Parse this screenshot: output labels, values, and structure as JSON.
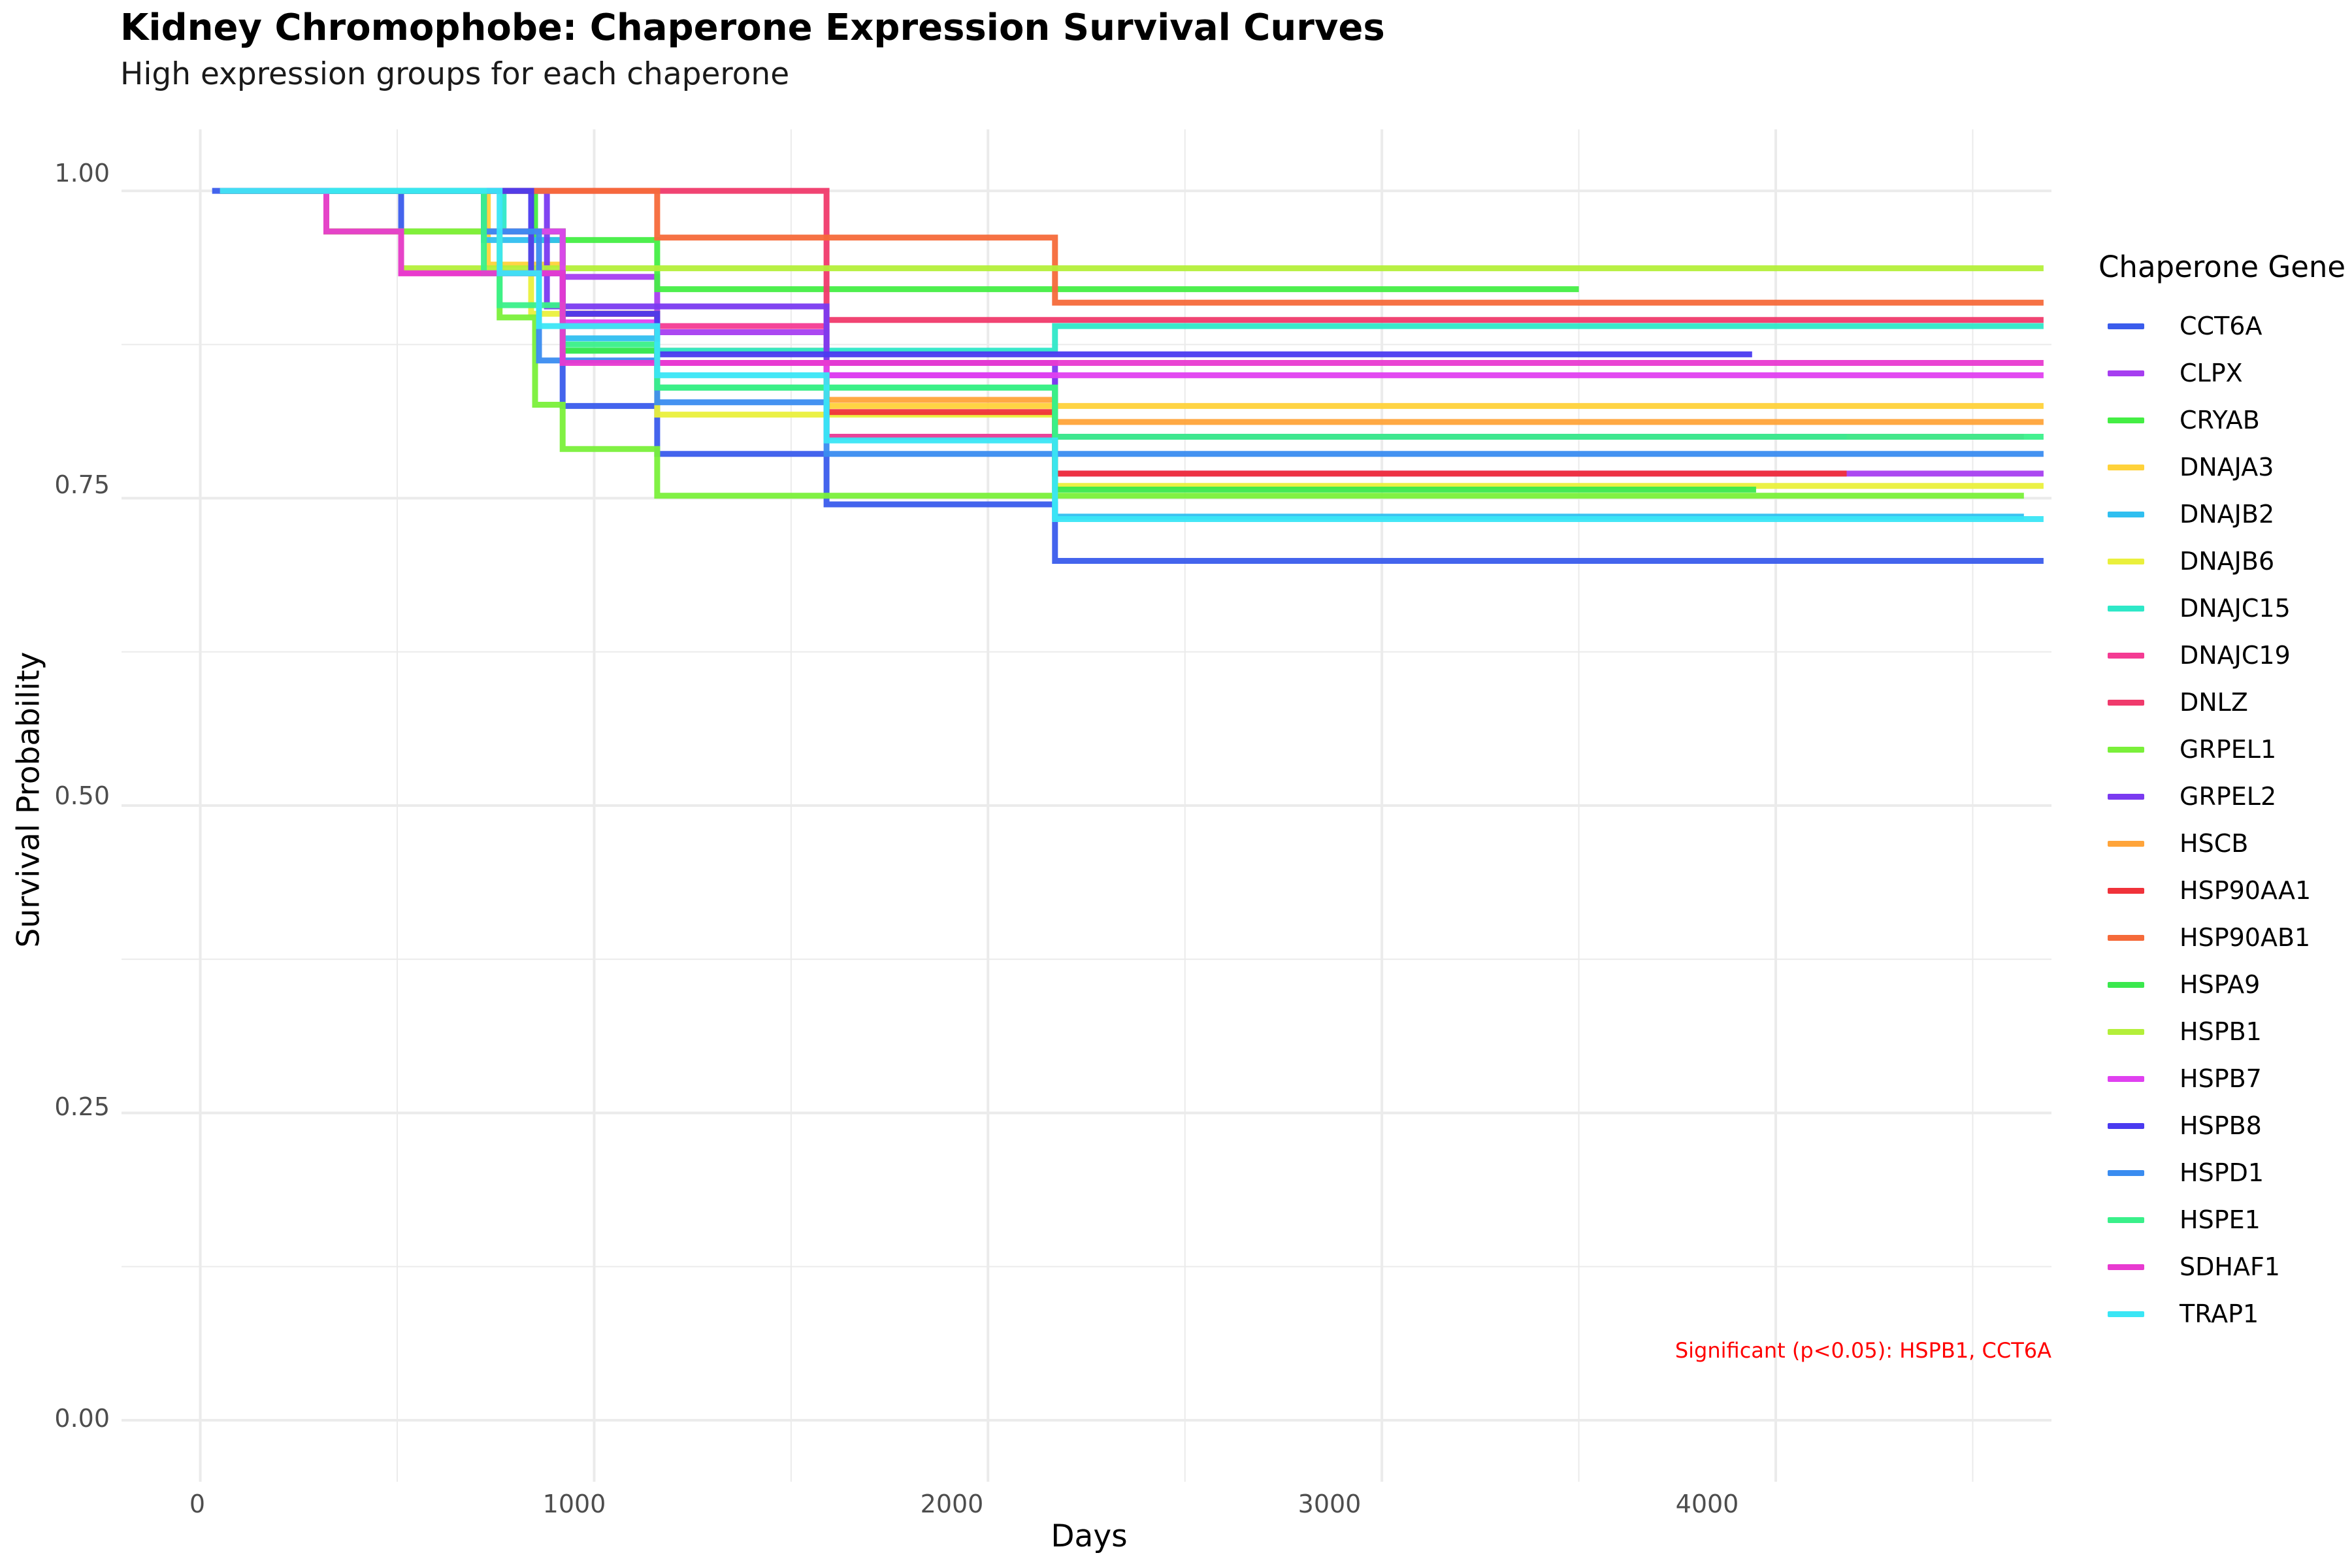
{
  "title": "Kidney Chromophobe: Chaperone Expression Survival Curves",
  "subtitle": "High expression groups for each chaperone",
  "annotation": "Significant (p<0.05): HSPB1, CCT6A",
  "legend_title": "Chaperone Gene",
  "chart_data": {
    "type": "line",
    "subtype": "kaplan-meier step curves",
    "title": "Kidney Chromophobe: Chaperone Expression Survival Curves",
    "subtitle": "High expression groups for each chaperone",
    "xlabel": "Days",
    "ylabel": "Survival Probability",
    "xlim": [
      -200,
      4700
    ],
    "ylim": [
      -0.05,
      1.05
    ],
    "xticks": [
      "0",
      "1000",
      "2000",
      "3000",
      "4000"
    ],
    "yticks": [
      "0.00",
      "0.25",
      "0.50",
      "0.75",
      "1.00"
    ],
    "grid": true,
    "legend_position": "right",
    "series": [
      {
        "name": "CCT6A",
        "color": "#3a5cec",
        "x": [
          30,
          510,
          920,
          1160,
          1590,
          2170,
          4680
        ],
        "y": [
          1.0,
          0.967,
          0.825,
          0.786,
          0.745,
          0.699,
          0.699
        ]
      },
      {
        "name": "CLPX",
        "color": "#a63ef0",
        "x": [
          50,
          720,
          920,
          1160,
          1590,
          2170,
          4680
        ],
        "y": [
          1.0,
          0.967,
          0.93,
          0.885,
          0.85,
          0.77,
          0.77
        ]
      },
      {
        "name": "CRYAB",
        "color": "#44ee44",
        "x": [
          50,
          850,
          1160,
          2170,
          3500
        ],
        "y": [
          1.0,
          0.96,
          0.92,
          0.92,
          0.92
        ]
      },
      {
        "name": "DNAJA3",
        "color": "#ffd23a",
        "x": [
          50,
          730,
          920,
          1160,
          1590,
          4680
        ],
        "y": [
          1.0,
          0.94,
          0.9,
          0.87,
          0.825,
          0.825
        ]
      },
      {
        "name": "DNAJB2",
        "color": "#30bff0",
        "x": [
          50,
          720,
          920,
          1160,
          1590,
          2170,
          4630
        ],
        "y": [
          1.0,
          0.96,
          0.88,
          0.84,
          0.8,
          0.735,
          0.735
        ]
      },
      {
        "name": "DNAJB6",
        "color": "#eaf03c",
        "x": [
          50,
          320,
          840,
          1160,
          1590,
          2170,
          4680
        ],
        "y": [
          1.0,
          0.967,
          0.9,
          0.818,
          0.818,
          0.76,
          0.76
        ]
      },
      {
        "name": "DNAJC15",
        "color": "#2ee8c8",
        "x": [
          50,
          770,
          920,
          1160,
          2170,
          4680
        ],
        "y": [
          1.0,
          0.967,
          0.87,
          0.87,
          0.89,
          0.89
        ]
      },
      {
        "name": "DNAJC19",
        "color": "#f43b93",
        "x": [
          50,
          320,
          510,
          920,
          1590,
          4630
        ],
        "y": [
          1.0,
          0.967,
          0.933,
          0.89,
          0.8,
          0.8
        ]
      },
      {
        "name": "DNLZ",
        "color": "#f03a6c",
        "x": [
          50,
          1590,
          2170,
          4680
        ],
        "y": [
          1.0,
          0.895,
          0.895,
          0.895
        ]
      },
      {
        "name": "GRPEL1",
        "color": "#7af03a",
        "x": [
          50,
          320,
          760,
          850,
          920,
          1160,
          2170,
          4630
        ],
        "y": [
          1.0,
          0.967,
          0.897,
          0.826,
          0.79,
          0.752,
          0.752,
          0.752
        ]
      },
      {
        "name": "GRPEL2",
        "color": "#7a3af0",
        "x": [
          50,
          880,
          1590,
          2170,
          4180
        ],
        "y": [
          1.0,
          0.906,
          0.86,
          0.8,
          0.8
        ]
      },
      {
        "name": "HSCB",
        "color": "#ffa43a",
        "x": [
          50,
          720,
          920,
          1160,
          1590,
          2170,
          4680
        ],
        "y": [
          1.0,
          0.967,
          0.9,
          0.86,
          0.83,
          0.812,
          0.812
        ]
      },
      {
        "name": "HSP90AA1",
        "color": "#f0323a",
        "x": [
          50,
          720,
          920,
          1160,
          1590,
          2170,
          4180
        ],
        "y": [
          1.0,
          0.967,
          0.9,
          0.86,
          0.82,
          0.77,
          0.77
        ]
      },
      {
        "name": "HSP90AB1",
        "color": "#f56a3a",
        "x": [
          50,
          720,
          1160,
          2170,
          4680
        ],
        "y": [
          1.0,
          1.0,
          0.962,
          0.909,
          0.909
        ]
      },
      {
        "name": "HSPA9",
        "color": "#3ae84d",
        "x": [
          50,
          720,
          920,
          1160,
          2170,
          3950
        ],
        "y": [
          1.0,
          0.967,
          0.87,
          0.84,
          0.757,
          0.757
        ]
      },
      {
        "name": "HSPB1",
        "color": "#b4ef3a",
        "x": [
          50,
          320,
          510,
          4680
        ],
        "y": [
          1.0,
          0.967,
          0.937,
          0.937
        ]
      },
      {
        "name": "HSPB7",
        "color": "#e040f0",
        "x": [
          50,
          720,
          920,
          1160,
          1590,
          4680
        ],
        "y": [
          1.0,
          0.967,
          0.893,
          0.86,
          0.85,
          0.85
        ]
      },
      {
        "name": "HSPB8",
        "color": "#4a3af0",
        "x": [
          50,
          840,
          920,
          1160,
          1590,
          3940
        ],
        "y": [
          1.0,
          0.933,
          0.9,
          0.867,
          0.867,
          0.867
        ]
      },
      {
        "name": "HSPD1",
        "color": "#3a8cf0",
        "x": [
          50,
          720,
          860,
          1160,
          1590,
          2170,
          4680
        ],
        "y": [
          1.0,
          0.967,
          0.862,
          0.828,
          0.786,
          0.786,
          0.786
        ]
      },
      {
        "name": "HSPE1",
        "color": "#3af08a",
        "x": [
          50,
          720,
          760,
          920,
          1160,
          2170,
          4680
        ],
        "y": [
          1.0,
          0.933,
          0.907,
          0.875,
          0.84,
          0.8,
          0.8
        ]
      },
      {
        "name": "SDHAF1",
        "color": "#e83ad0",
        "x": [
          50,
          320,
          510,
          920,
          1590,
          4680
        ],
        "y": [
          1.0,
          0.967,
          0.933,
          0.86,
          0.86,
          0.86
        ]
      },
      {
        "name": "TRAP1",
        "color": "#3ae6f5",
        "x": [
          50,
          720,
          760,
          860,
          1160,
          1590,
          2170,
          4680
        ],
        "y": [
          1.0,
          1.0,
          0.933,
          0.89,
          0.85,
          0.797,
          0.733,
          0.733
        ]
      }
    ]
  }
}
